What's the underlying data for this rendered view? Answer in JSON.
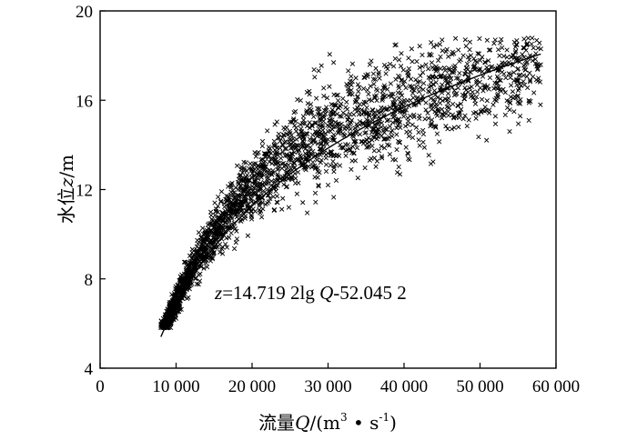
{
  "chart_data": {
    "type": "scatter",
    "title": "",
    "xlabel": {
      "prefix": "流量",
      "symbol": "Q",
      "unit_open": "/(m",
      "sup1": "3",
      "mid": " • s",
      "sup2": "-1",
      "close": ")"
    },
    "ylabel": {
      "prefix": "水位",
      "symbol": "z",
      "unit": "/m"
    },
    "xlim": [
      0,
      60000
    ],
    "ylim": [
      4,
      20
    ],
    "x_ticks": [
      0,
      10000,
      20000,
      30000,
      40000,
      50000,
      60000
    ],
    "x_tick_labels": [
      "0",
      "10 000",
      "20 000",
      "30 000",
      "40 000",
      "50 000",
      "60 000"
    ],
    "y_ticks": [
      4,
      8,
      12,
      16,
      20
    ],
    "y_tick_labels": [
      "4",
      "8",
      "12",
      "16",
      "20"
    ],
    "marker": "x",
    "grid": false,
    "legend": "none",
    "fit": {
      "a": 14.7192,
      "b": -52.0452,
      "form": "z = a·lg(Q) + b",
      "x_range": [
        8000,
        58000
      ]
    },
    "equation": {
      "var": "z",
      "mid": "=14.719 2lg ",
      "var2": "Q",
      "rest": "-52.045 2"
    },
    "scatter": {
      "count": 2600,
      "x_range": [
        8000,
        58000
      ],
      "series": [
        {
          "name": "",
          "points": [
            [
              8200,
              6.0
            ],
            [
              9000,
              6.6
            ],
            [
              10000,
              7.2
            ],
            [
              11000,
              7.7
            ],
            [
              12000,
              8.3
            ],
            [
              14000,
              9.3
            ],
            [
              16000,
              10.2
            ],
            [
              18000,
              11.0
            ],
            [
              20000,
              11.8
            ],
            [
              22000,
              12.6
            ],
            [
              25000,
              13.4
            ],
            [
              28000,
              14.2
            ],
            [
              30000,
              14.6
            ],
            [
              33000,
              15.0
            ],
            [
              36000,
              15.4
            ],
            [
              40000,
              15.9
            ],
            [
              45000,
              16.7
            ],
            [
              50000,
              17.4
            ],
            [
              55000,
              17.9
            ],
            [
              58000,
              18.3
            ],
            [
              22000,
              13.6
            ],
            [
              52000,
              18.7
            ],
            [
              41000,
              18.3
            ],
            [
              30000,
              12.2
            ],
            [
              55000,
              16.2
            ]
          ]
        }
      ]
    },
    "colors": {
      "ink": "#000000",
      "background": "#ffffff"
    }
  }
}
